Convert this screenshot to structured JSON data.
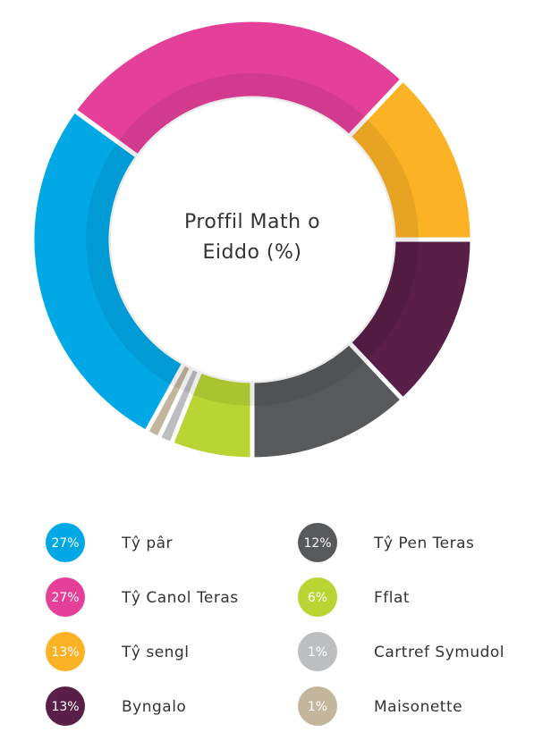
{
  "chart_data": {
    "type": "donut",
    "title": "Proffil Math o Eiddo (%)",
    "categories": [
      "Tŷ pâr",
      "Tŷ Canol Teras",
      "Tŷ sengl",
      "Byngalo",
      "Tŷ Pen Teras",
      "Fflat",
      "Cartref Symudol",
      "Maisonette"
    ],
    "values": [
      27,
      27,
      13,
      13,
      12,
      6,
      1,
      1
    ],
    "value_labels": [
      "27%",
      "27%",
      "13%",
      "13%",
      "12%",
      "6%",
      "1%",
      "1%"
    ],
    "colors": [
      "#00a9e6",
      "#e4409a",
      "#fbb225",
      "#5a1f48",
      "#58595b",
      "#b8d534",
      "#bcbec0",
      "#c4b59d"
    ]
  }
}
